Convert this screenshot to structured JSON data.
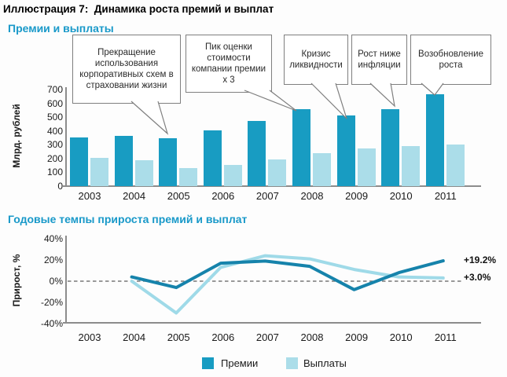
{
  "figure_title": "Иллюстрация 7:  Динамика роста премий и выплат",
  "colors": {
    "premium": "#189cc2",
    "payout": "#abdde9",
    "premium_line": "#1683ab",
    "payout_line": "#9fdae8",
    "heading": "#1999c9",
    "axis": "#8c8c8c",
    "callout_border": "#7f7f7f"
  },
  "chart_data": [
    {
      "id": "premiums-payouts-bars",
      "type": "bar",
      "title": "Премии и выплаты",
      "ylabel": "Млрд. рублей",
      "ylim": [
        0,
        700
      ],
      "yticks": [
        700,
        600,
        500,
        400,
        300,
        200,
        100,
        0
      ],
      "categories": [
        "2003",
        "2004",
        "2005",
        "2006",
        "2007",
        "2008",
        "2009",
        "2010",
        "2011"
      ],
      "series": [
        {
          "name": "Премии",
          "color": "#189cc2",
          "values": [
            355,
            365,
            345,
            405,
            475,
            555,
            515,
            560,
            665
          ]
        },
        {
          "name": "Выплаты",
          "color": "#abdde9",
          "values": [
            205,
            190,
            130,
            155,
            195,
            240,
            275,
            290,
            300
          ]
        }
      ],
      "legend_position": "bottom",
      "grid": false,
      "annotations": [
        {
          "text": "Прекращение использования корпоративных схем в страховании жизни",
          "target_year": "2005"
        },
        {
          "text": "Пик оценки стоимости компании премии x 3",
          "target_year": "2008"
        },
        {
          "text": "Кризис ликвидности",
          "target_year": "2009"
        },
        {
          "text": "Рост ниже инфляции",
          "target_year": "2010"
        },
        {
          "text": "Возобновление роста",
          "target_year": "2011"
        }
      ]
    },
    {
      "id": "growth-rates-lines",
      "type": "line",
      "title": "Годовые темпы прироста премий и выплат",
      "ylabel": "Прирост, %",
      "ylim": [
        -40,
        40
      ],
      "yticks": [
        40,
        20,
        0,
        -20,
        -40
      ],
      "ytick_labels": [
        "40%",
        "20%",
        "0%",
        "-20%",
        "-40%"
      ],
      "categories": [
        "2003",
        "2004",
        "2005",
        "2006",
        "2007",
        "2008",
        "2009",
        "2010",
        "2011"
      ],
      "x": [
        "2004",
        "2005",
        "2006",
        "2007",
        "2008",
        "2009",
        "2010",
        "2011"
      ],
      "zero_line_dashed": true,
      "series": [
        {
          "name": "Премии",
          "color": "#1683ab",
          "values": [
            4,
            -6,
            17,
            19,
            14,
            -8,
            8,
            19.2
          ],
          "end_label": "+19.2%"
        },
        {
          "name": "Выплаты",
          "color": "#9fdae8",
          "values": [
            0,
            -30,
            13,
            24,
            21,
            11,
            4,
            3.0
          ],
          "end_label": "+3.0%"
        }
      ]
    }
  ],
  "legend": {
    "items": [
      {
        "label": "Премии",
        "color": "#189cc2"
      },
      {
        "label": "Выплаты",
        "color": "#abdde9"
      }
    ]
  }
}
